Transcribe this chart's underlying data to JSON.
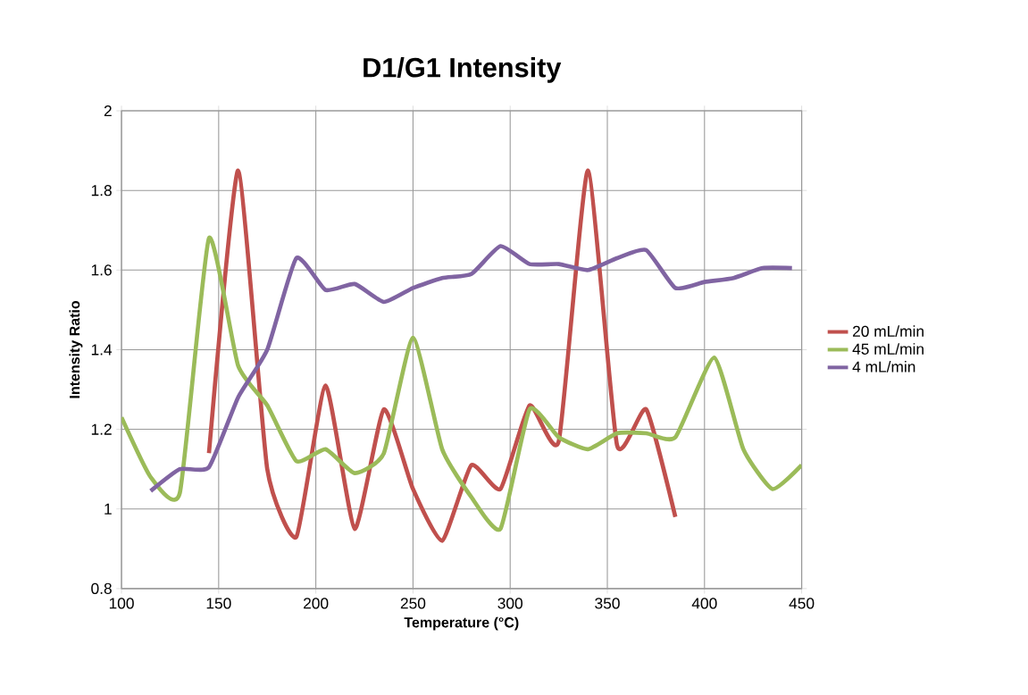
{
  "chart_data": {
    "type": "line",
    "title": "D1/G1 Intensity",
    "xlabel": "Temperature (°C)",
    "ylabel": "Intensity Ratio",
    "xlim": [
      100,
      450
    ],
    "xticks": [
      100,
      150,
      200,
      250,
      300,
      350,
      400,
      450
    ],
    "ylim": [
      0.8,
      2
    ],
    "yticks": [
      0.8,
      1,
      1.2,
      1.4,
      1.6,
      1.8,
      2
    ],
    "grid": true,
    "legend": "right",
    "marker": "none",
    "line_style": "solid",
    "series": [
      {
        "name": "20 mL/min",
        "color": "#c0504d",
        "x": [
          145,
          160,
          175,
          190,
          205,
          220,
          235,
          250,
          265,
          280,
          295,
          310,
          325,
          340,
          355,
          370,
          385
        ],
        "values": [
          1.14,
          1.85,
          1.1,
          0.93,
          1.31,
          0.95,
          1.25,
          1.05,
          0.92,
          1.11,
          1.05,
          1.26,
          1.17,
          1.85,
          1.16,
          1.25,
          0.98
        ]
      },
      {
        "name": "45 mL/min",
        "color": "#9bbb59",
        "x": [
          100,
          115,
          130,
          145,
          160,
          175,
          190,
          205,
          220,
          235,
          250,
          265,
          280,
          295,
          310,
          325,
          340,
          355,
          370,
          385,
          405,
          420,
          435,
          450
        ],
        "values": [
          1.23,
          1.08,
          1.04,
          1.68,
          1.36,
          1.26,
          1.12,
          1.15,
          1.09,
          1.14,
          1.43,
          1.15,
          1.03,
          0.95,
          1.25,
          1.18,
          1.15,
          1.19,
          1.19,
          1.18,
          1.38,
          1.15,
          1.05,
          1.11
        ]
      },
      {
        "name": "4 mL/min",
        "color": "#8064a2",
        "x": [
          115,
          130,
          145,
          160,
          175,
          190,
          205,
          220,
          235,
          250,
          265,
          280,
          295,
          310,
          325,
          340,
          355,
          370,
          385,
          400,
          415,
          430,
          445
        ],
        "values": [
          1.045,
          1.1,
          1.105,
          1.28,
          1.4,
          1.63,
          1.55,
          1.565,
          1.52,
          1.555,
          1.58,
          1.59,
          1.66,
          1.615,
          1.615,
          1.6,
          1.63,
          1.65,
          1.555,
          1.57,
          1.58,
          1.605,
          1.605
        ]
      }
    ]
  }
}
